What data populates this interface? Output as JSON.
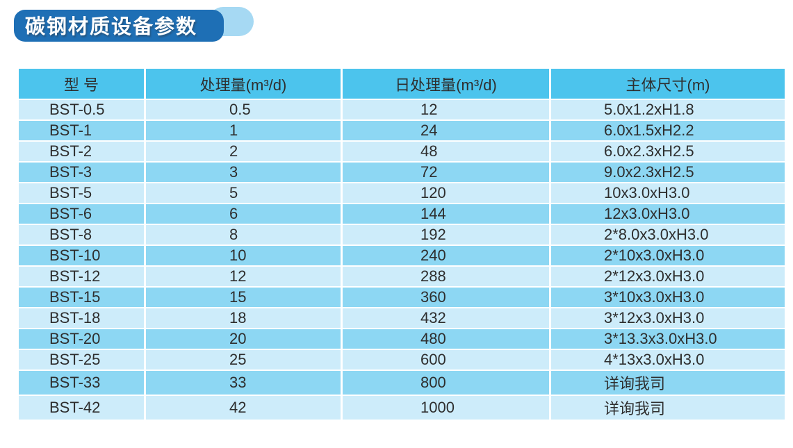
{
  "title": {
    "text": "碳钢材质设备参数"
  },
  "colors": {
    "page_bg": "#ffffff",
    "badge_blue": "#1e6fb5",
    "badge_accent": "#a6d9f3",
    "header_bg": "#4cc4ed",
    "row_light": "#cdecfa",
    "row_dark": "#8dd7f3",
    "text": "#2e2e2e"
  },
  "table": {
    "columns": [
      {
        "key": "model",
        "label": "型 号"
      },
      {
        "key": "capacity",
        "label": "处理量(m³/d)"
      },
      {
        "key": "daily",
        "label": "日处理量(m³/d)"
      },
      {
        "key": "size",
        "label": "主体尺寸(m)"
      }
    ],
    "rows": [
      [
        "BST-0.5",
        "0.5",
        "12",
        "5.0x1.2xH1.8"
      ],
      [
        "BST-1",
        "1",
        "24",
        "6.0x1.5xH2.2"
      ],
      [
        "BST-2",
        "2",
        "48",
        "6.0x2.3xH2.5"
      ],
      [
        "BST-3",
        "3",
        "72",
        "9.0x2.3xH2.5"
      ],
      [
        "BST-5",
        "5",
        "120",
        "10x3.0xH3.0"
      ],
      [
        "BST-6",
        "6",
        "144",
        "12x3.0xH3.0"
      ],
      [
        "BST-8",
        "8",
        "192",
        "2*8.0x3.0xH3.0"
      ],
      [
        "BST-10",
        "10",
        "240",
        "2*10x3.0xH3.0"
      ],
      [
        "BST-12",
        "12",
        "288",
        "2*12x3.0xH3.0"
      ],
      [
        "BST-15",
        "15",
        "360",
        "3*10x3.0xH3.0"
      ],
      [
        "BST-18",
        "18",
        "432",
        "3*12x3.0xH3.0"
      ],
      [
        "BST-20",
        "20",
        "480",
        "3*13.3x3.0xH3.0"
      ],
      [
        "BST-25",
        "25",
        "600",
        "4*13x3.0xH3.0"
      ],
      [
        "BST-33",
        "33",
        "800",
        "详询我司"
      ],
      [
        "BST-42",
        "42",
        "1000",
        "详询我司"
      ]
    ]
  }
}
